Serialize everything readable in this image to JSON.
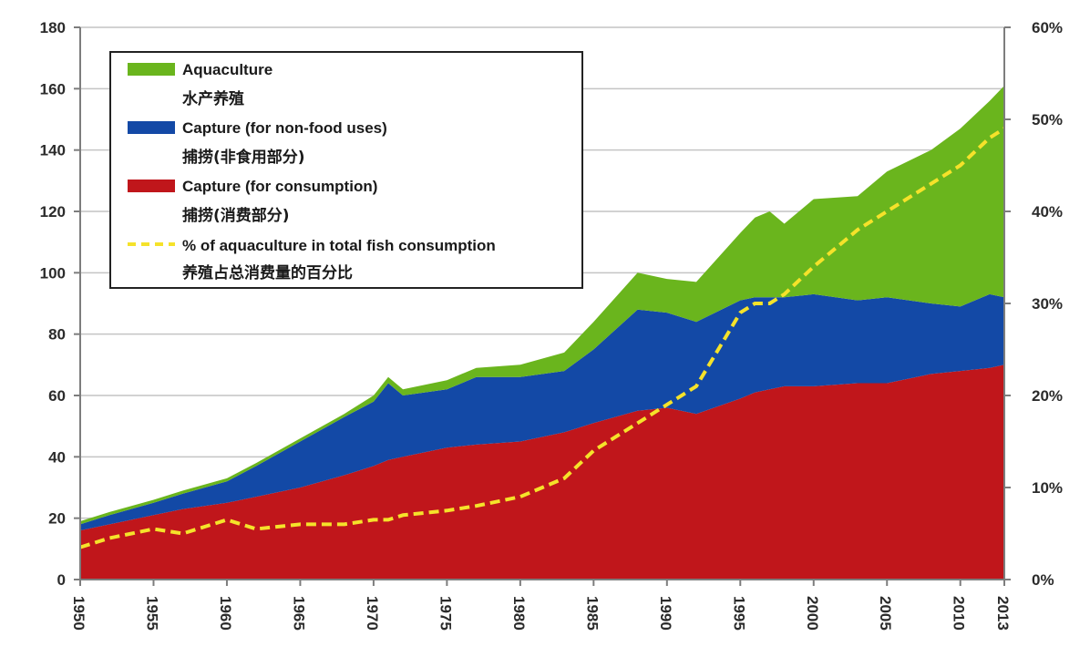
{
  "chart_data": {
    "type": "area",
    "stacked": true,
    "x": [
      1950,
      1952,
      1955,
      1957,
      1960,
      1962,
      1965,
      1968,
      1970,
      1971,
      1972,
      1975,
      1977,
      1980,
      1983,
      1985,
      1988,
      1990,
      1992,
      1995,
      1996,
      1997,
      1998,
      2000,
      2003,
      2005,
      2008,
      2010,
      2012,
      2013
    ],
    "series": [
      {
        "name": "Capture (for consumption)",
        "name_cn": "捕捞(消费部分)",
        "color": "#c0161b",
        "values": [
          16,
          18,
          21,
          23,
          25,
          27,
          30,
          34,
          37,
          39,
          40,
          43,
          44,
          45,
          48,
          51,
          55,
          56,
          54,
          59,
          61,
          62,
          63,
          63,
          64,
          64,
          67,
          68,
          69,
          70
        ]
      },
      {
        "name": "Capture (for non-food uses)",
        "name_cn": "捕捞(非食用部分)",
        "color": "#1349a6",
        "values": [
          2,
          3,
          4,
          5,
          7,
          10,
          15,
          19,
          21,
          25,
          20,
          19,
          22,
          21,
          20,
          24,
          33,
          31,
          30,
          32,
          31,
          30,
          29,
          30,
          27,
          28,
          23,
          21,
          24,
          22
        ]
      },
      {
        "name": "Aquaculture",
        "name_cn": "水产养殖",
        "color": "#6ab51d",
        "values": [
          1,
          1,
          1,
          1,
          1,
          1,
          1,
          1,
          2,
          2,
          2,
          3,
          3,
          4,
          6,
          9,
          12,
          11,
          13,
          22,
          26,
          28,
          24,
          31,
          34,
          41,
          50,
          58,
          63,
          69
        ]
      }
    ],
    "line": {
      "name": "% of aquaculture in total fish consumption",
      "name_cn": "养殖占总消费量的百分比",
      "color": "#f5e22a",
      "axis": "right",
      "values": [
        3.5,
        4.5,
        5.5,
        5,
        6.5,
        5.5,
        6,
        6,
        6.5,
        6.5,
        7,
        7.5,
        8,
        9,
        11,
        14,
        17,
        19,
        21,
        29,
        30,
        30,
        31,
        34,
        38,
        40,
        43,
        45,
        48,
        49
      ]
    },
    "y_left": {
      "min": 0,
      "max": 180,
      "ticks": [
        0,
        20,
        40,
        60,
        80,
        100,
        120,
        140,
        160,
        180
      ]
    },
    "y_right": {
      "min": 0,
      "max": 60,
      "ticks": [
        "0%",
        "10%",
        "20%",
        "30%",
        "40%",
        "50%",
        "60%"
      ]
    },
    "x_ticks": [
      "1950",
      "1955",
      "1960",
      "1965",
      "1970",
      "1975",
      "1980",
      "1985",
      "1990",
      "1995",
      "2000",
      "2005",
      "2010",
      "2013"
    ],
    "legend_position": "top-left",
    "grid": true
  }
}
